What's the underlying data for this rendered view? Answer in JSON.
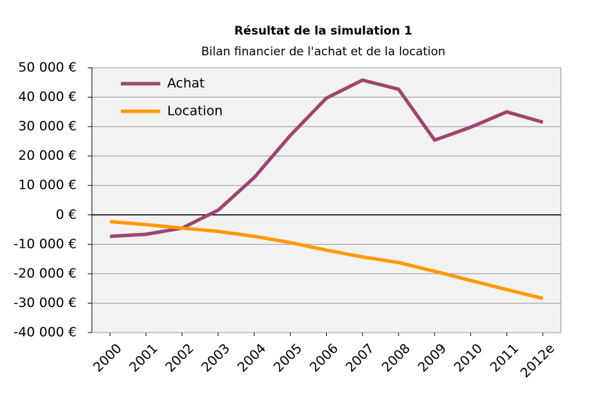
{
  "chart_data": {
    "type": "line",
    "title": "Résultat de la simulation 1",
    "subtitle": "Bilan financier de l'achat et de la location",
    "categories": [
      "2000",
      "2001",
      "2002",
      "2003",
      "2004",
      "2005",
      "2006",
      "2007",
      "2008",
      "2009",
      "2010",
      "2011",
      "2012e"
    ],
    "series": [
      {
        "name": "Achat",
        "color": "#9e4570",
        "values": [
          -7300,
          -6600,
          -4500,
          1600,
          12700,
          27000,
          39700,
          45800,
          42700,
          25400,
          29800,
          35000,
          31500
        ]
      },
      {
        "name": "Location",
        "color": "#ff9900",
        "values": [
          -2300,
          -3300,
          -4500,
          -5600,
          -7300,
          -9400,
          -12000,
          -14300,
          -16200,
          -19200,
          -22300,
          -25400,
          -28400
        ]
      }
    ],
    "ylim": [
      -40000,
      50000
    ],
    "yticks": [
      {
        "value": -40000,
        "label": "-40 000 €"
      },
      {
        "value": -30000,
        "label": "-30 000 €"
      },
      {
        "value": -20000,
        "label": "-20 000 €"
      },
      {
        "value": -10000,
        "label": "-10 000 €"
      },
      {
        "value": 0,
        "label": "0 €"
      },
      {
        "value": 10000,
        "label": "10 000 €"
      },
      {
        "value": 20000,
        "label": "20 000 €"
      },
      {
        "value": 30000,
        "label": "30 000 €"
      },
      {
        "value": 40000,
        "label": "40 000 €"
      },
      {
        "value": 50000,
        "label": "50 000 €"
      }
    ],
    "grid": true,
    "legend": "top-left"
  }
}
